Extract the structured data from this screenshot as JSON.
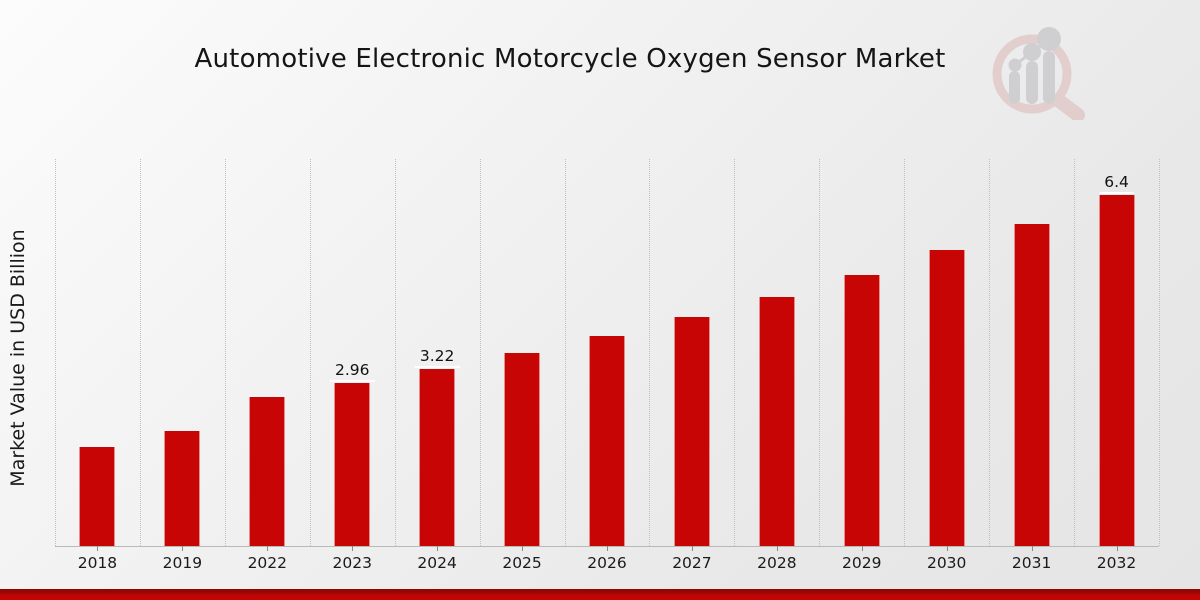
{
  "header": {
    "title": "Automotive Electronic Motorcycle Oxygen Sensor Market",
    "logo_icon": "magnifier-bar-chart-logo"
  },
  "chart_data": {
    "type": "bar",
    "title": "Automotive Electronic Motorcycle Oxygen Sensor Market",
    "xlabel": "",
    "ylabel": "Market Value in USD Billion",
    "categories": [
      "2018",
      "2019",
      "2022",
      "2023",
      "2024",
      "2025",
      "2026",
      "2027",
      "2028",
      "2029",
      "2030",
      "2031",
      "2032"
    ],
    "values": [
      1.81,
      2.1,
      2.72,
      2.96,
      3.22,
      3.52,
      3.83,
      4.17,
      4.54,
      4.94,
      5.4,
      5.86,
      6.4
    ],
    "data_labels": {
      "2023": "2.96",
      "2024": "3.22",
      "2032": "6.4"
    },
    "ylim": [
      0,
      7.05
    ],
    "y_ticks_visible": false,
    "grid": "vertical-dotted",
    "legend": "none",
    "bar_color": "#c70505"
  },
  "colors": {
    "bar": "#c70505",
    "footer_accent": "#c30404",
    "gridline": "#bfbfbf",
    "background_light": "#fcfcfc",
    "background_dark": "#e5e5e5"
  }
}
